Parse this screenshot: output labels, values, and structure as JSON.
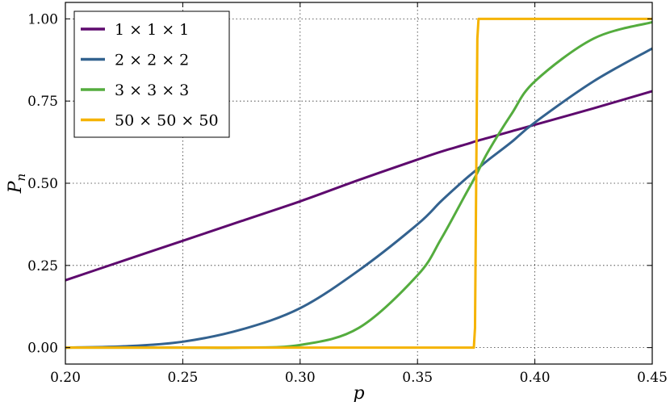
{
  "chart_data": {
    "type": "line",
    "title": "",
    "xlabel": "p",
    "ylabel": {
      "main": "P",
      "sub": "n"
    },
    "xlim": [
      0.2,
      0.45
    ],
    "ylim": [
      -0.05,
      1.05
    ],
    "x_ticks": [
      0.2,
      0.25,
      0.3,
      0.35,
      0.4,
      0.45
    ],
    "x_tick_labels": [
      "0.20",
      "0.25",
      "0.30",
      "0.35",
      "0.40",
      "0.45"
    ],
    "y_ticks": [
      0.0,
      0.25,
      0.5,
      0.75,
      1.0
    ],
    "y_tick_labels": [
      "0.00",
      "0.25",
      "0.50",
      "0.75",
      "1.00"
    ],
    "grid": true,
    "legend_position": "top-left",
    "x": [
      0.2,
      0.225,
      0.25,
      0.275,
      0.3,
      0.325,
      0.35,
      0.36,
      0.37,
      0.375,
      0.38,
      0.39,
      0.4,
      0.425,
      0.45
    ],
    "series": [
      {
        "name": "1 × 1 × 1",
        "color": "#5e0a6e",
        "values": [
          0.205,
          0.265,
          0.325,
          0.385,
          0.445,
          0.51,
          0.572,
          0.596,
          0.617,
          0.628,
          0.638,
          0.658,
          0.678,
          0.728,
          0.78
        ]
      },
      {
        "name": "2 × 2 × 2",
        "color": "#33628f",
        "values": [
          0.0,
          0.004,
          0.018,
          0.055,
          0.12,
          0.235,
          0.375,
          0.445,
          0.51,
          0.54,
          0.57,
          0.625,
          0.685,
          0.81,
          0.91
        ]
      },
      {
        "name": "3 × 3 × 3",
        "color": "#54ac3e",
        "values": [
          0.0,
          0.0,
          0.0,
          0.0,
          0.008,
          0.06,
          0.22,
          0.33,
          0.46,
          0.525,
          0.595,
          0.71,
          0.81,
          0.94,
          0.99
        ]
      },
      {
        "name": "50 × 50 × 50",
        "color": "#f5b300",
        "values": [
          0.0,
          0.0,
          0.0,
          0.0,
          0.0,
          0.0,
          0.0,
          0.0,
          0.0,
          0.0,
          1.0,
          1.0,
          1.0,
          1.0,
          1.0
        ],
        "transition": [
          [
            0.374,
            0.0
          ],
          [
            0.3745,
            0.06
          ],
          [
            0.375,
            0.5
          ],
          [
            0.3755,
            0.94
          ],
          [
            0.376,
            1.0
          ]
        ]
      }
    ]
  }
}
